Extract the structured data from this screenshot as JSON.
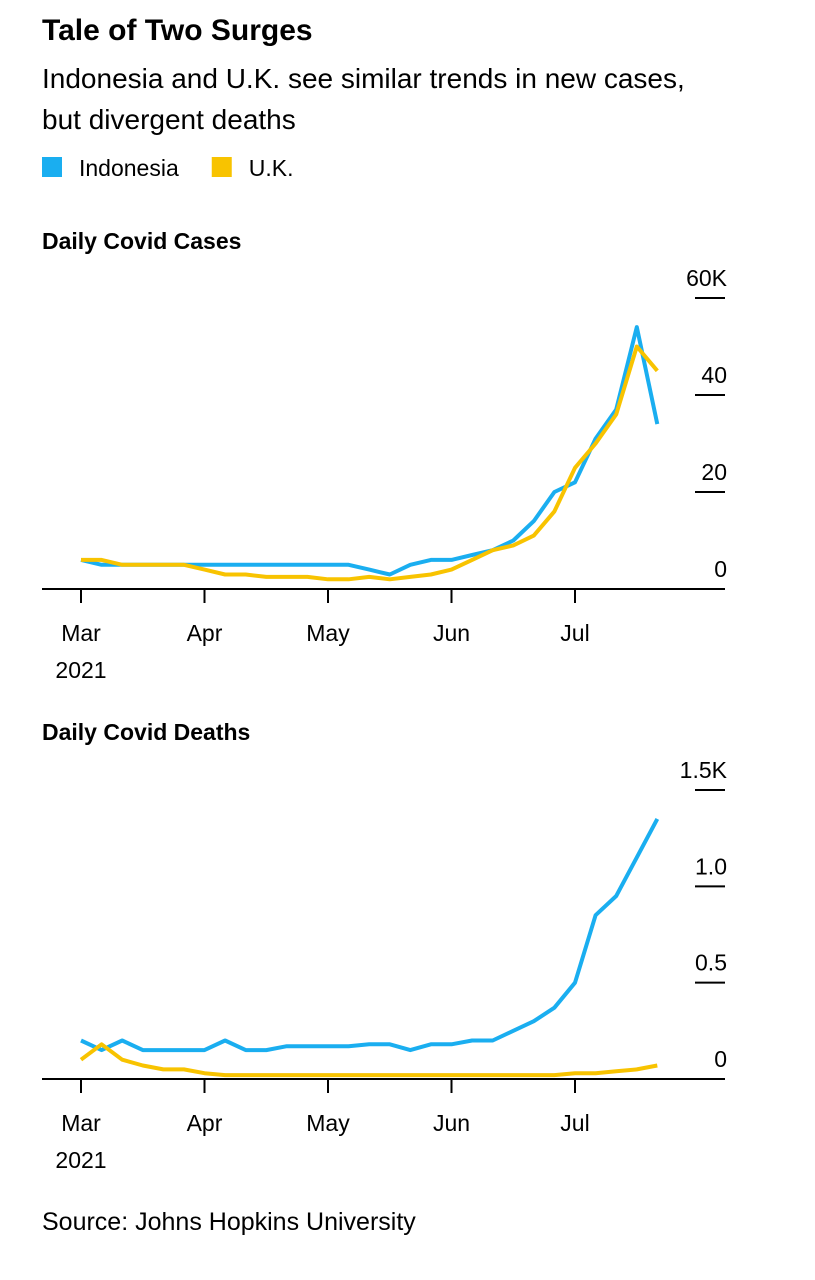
{
  "title": "Tale of Two Surges",
  "subtitle": "Indonesia and U.K. see similar trends in new cases, but divergent deaths",
  "source": "Source: Johns Hopkins University",
  "chart_data": [
    {
      "type": "line",
      "title": "Daily Covid Cases",
      "categories": [
        "Mar",
        null,
        null,
        null,
        null,
        null,
        "Apr",
        null,
        null,
        null,
        null,
        null,
        "May",
        null,
        null,
        null,
        null,
        null,
        "Jun",
        null,
        null,
        null,
        null,
        null,
        "Jul",
        null,
        null,
        null,
        null
      ],
      "x_year": "2021",
      "series": [
        {
          "name": "Indonesia",
          "color": "#1aaef0",
          "values": [
            6,
            5,
            5,
            5,
            5,
            5,
            5,
            5,
            5,
            5,
            5,
            5,
            5,
            5,
            4,
            3,
            5,
            6,
            6,
            7,
            8,
            10,
            14,
            20,
            22,
            31,
            37,
            54,
            34
          ]
        },
        {
          "name": "U.K.",
          "color": "#f8c300",
          "values": [
            6,
            6,
            5,
            5,
            5,
            5,
            4,
            3,
            3,
            2.5,
            2.5,
            2.5,
            2,
            2,
            2.5,
            2,
            2.5,
            3,
            4,
            6,
            8,
            9,
            11,
            16,
            25,
            30,
            36,
            50,
            45
          ]
        }
      ],
      "ylim": [
        0,
        60
      ],
      "yticks": [
        0,
        20,
        40,
        {
          "value": 60,
          "label": "60K"
        }
      ]
    },
    {
      "type": "line",
      "title": "Daily Covid Deaths",
      "categories": [
        "Mar",
        null,
        null,
        null,
        null,
        null,
        "Apr",
        null,
        null,
        null,
        null,
        null,
        "May",
        null,
        null,
        null,
        null,
        null,
        "Jun",
        null,
        null,
        null,
        null,
        null,
        "Jul",
        null,
        null,
        null,
        null
      ],
      "x_year": "2021",
      "series": [
        {
          "name": "Indonesia",
          "color": "#1aaef0",
          "values": [
            0.2,
            0.15,
            0.2,
            0.15,
            0.15,
            0.15,
            0.15,
            0.2,
            0.15,
            0.15,
            0.17,
            0.17,
            0.17,
            0.17,
            0.18,
            0.18,
            0.15,
            0.18,
            0.18,
            0.2,
            0.2,
            0.25,
            0.3,
            0.37,
            0.5,
            0.85,
            0.95,
            1.15,
            1.35
          ]
        },
        {
          "name": "U.K.",
          "color": "#f8c300",
          "values": [
            0.1,
            0.18,
            0.1,
            0.07,
            0.05,
            0.05,
            0.03,
            0.02,
            0.02,
            0.02,
            0.02,
            0.02,
            0.02,
            0.02,
            0.02,
            0.02,
            0.02,
            0.02,
            0.02,
            0.02,
            0.02,
            0.02,
            0.02,
            0.02,
            0.03,
            0.03,
            0.04,
            0.05,
            0.07
          ]
        }
      ],
      "ylim": [
        0,
        1.5
      ],
      "yticks": [
        0,
        0.5,
        {
          "value": 1,
          "label": "1.0"
        },
        {
          "value": 1.5,
          "label": "1.5K"
        }
      ]
    }
  ]
}
